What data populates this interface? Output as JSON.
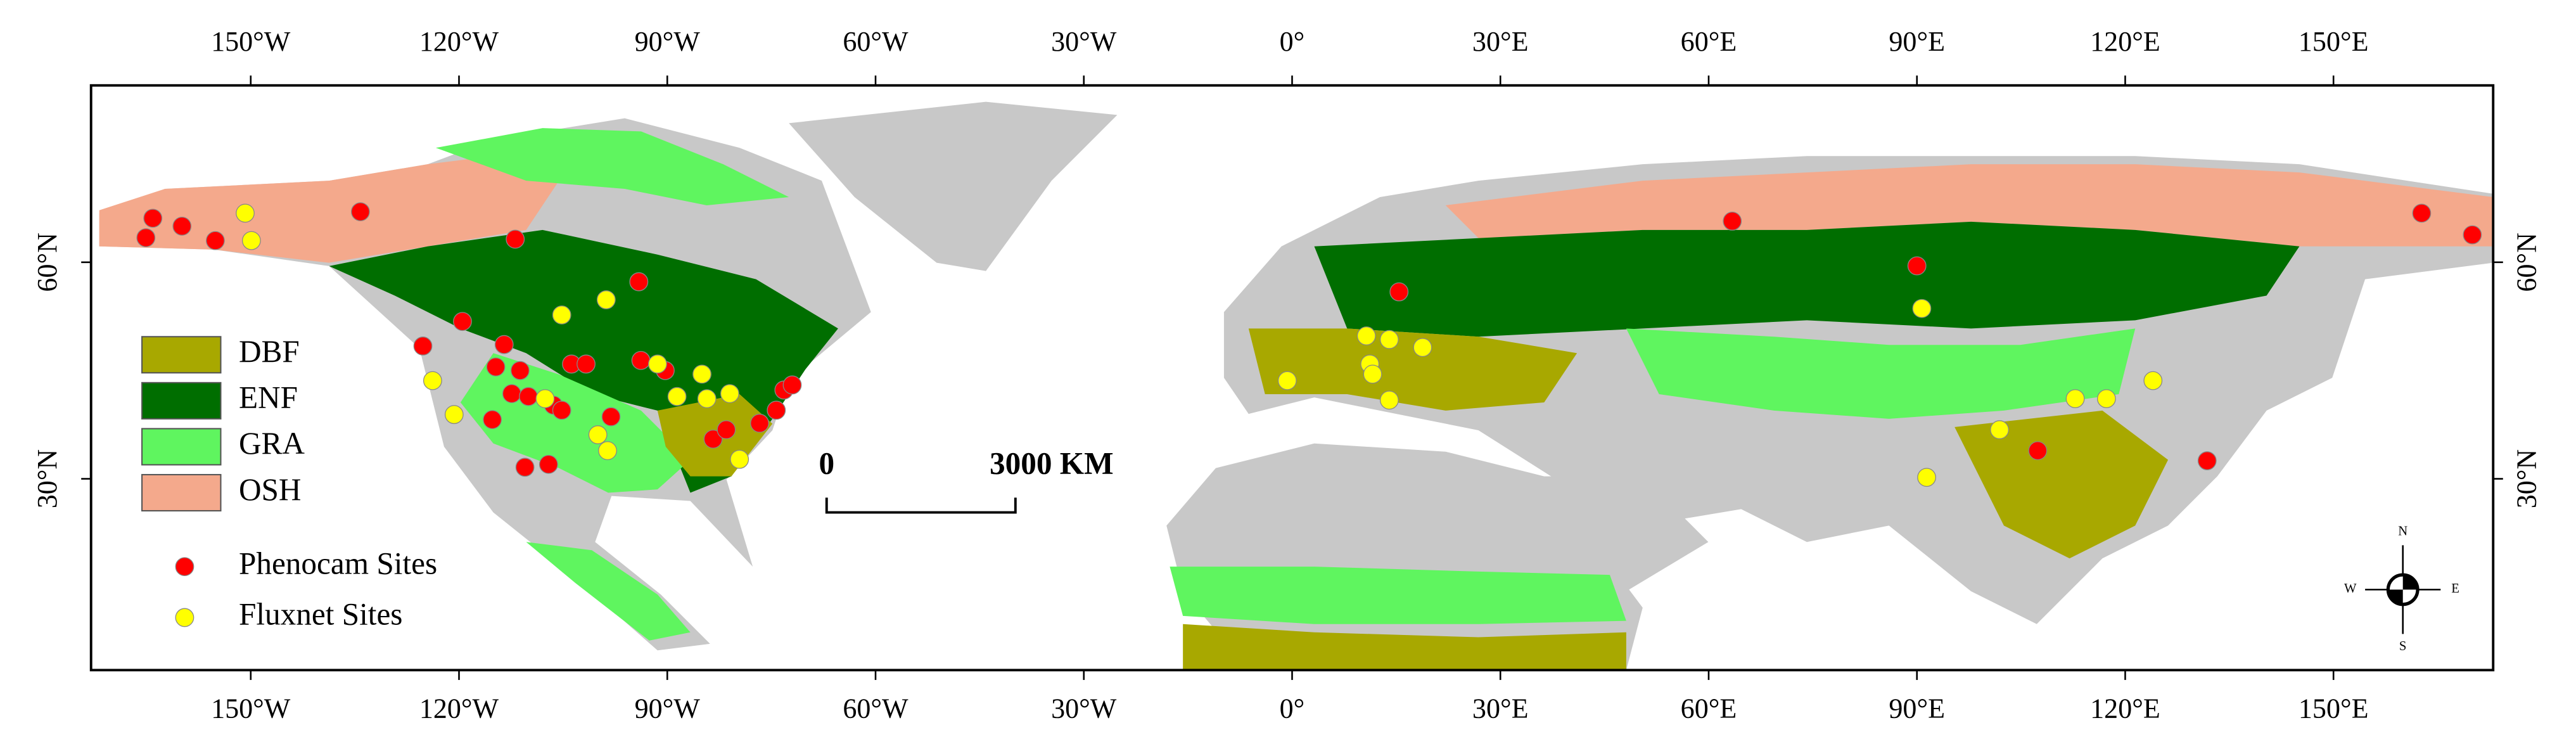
{
  "map": {
    "xlim": [
      -173,
      173
    ],
    "ylim": [
      3.5,
      84.5
    ],
    "lon_ticks": [
      {
        "value": -150,
        "label": "150°W"
      },
      {
        "value": -120,
        "label": "120°W"
      },
      {
        "value": -90,
        "label": "90°W"
      },
      {
        "value": -60,
        "label": "60°W"
      },
      {
        "value": -30,
        "label": "30°W"
      },
      {
        "value": 0,
        "label": "0°"
      },
      {
        "value": 30,
        "label": "30°E"
      },
      {
        "value": 60,
        "label": "60°E"
      },
      {
        "value": 90,
        "label": "90°E"
      },
      {
        "value": 120,
        "label": "120°E"
      },
      {
        "value": 150,
        "label": "150°E"
      }
    ],
    "lat_ticks": [
      {
        "value": 30,
        "label": "30°N"
      },
      {
        "value": 60,
        "label": "60°N"
      }
    ],
    "land_cover": [
      {
        "name": "DBF",
        "color": "#a8a800"
      },
      {
        "name": "ENF",
        "color": "#006e00"
      },
      {
        "name": "GRA",
        "color": "#5ff55f"
      },
      {
        "name": "OSH",
        "color": "#f4a98c"
      }
    ],
    "sites": [
      {
        "name": "Phenocam Sites",
        "color": "#ff0000",
        "points": [
          [
            -164.1,
            66.1
          ],
          [
            -165.1,
            63.4
          ],
          [
            -159.9,
            65.0
          ],
          [
            -155.1,
            63.0
          ],
          [
            -134.2,
            67.0
          ],
          [
            -111.9,
            63.2
          ],
          [
            -94.1,
            57.3
          ],
          [
            -119.5,
            51.8
          ],
          [
            -125.2,
            48.4
          ],
          [
            -113.5,
            48.6
          ],
          [
            -114.7,
            45.5
          ],
          [
            -111.2,
            45.0
          ],
          [
            -112.4,
            41.8
          ],
          [
            -110.0,
            41.4
          ],
          [
            -103.8,
            45.9
          ],
          [
            -101.7,
            45.9
          ],
          [
            -93.8,
            46.4
          ],
          [
            -90.3,
            45.0
          ],
          [
            -106.4,
            40.2
          ],
          [
            -105.2,
            39.5
          ],
          [
            -115.2,
            38.2
          ],
          [
            -110.5,
            31.6
          ],
          [
            -107.1,
            32.0
          ],
          [
            -98.1,
            38.6
          ],
          [
            -83.4,
            35.5
          ],
          [
            -81.5,
            36.8
          ],
          [
            -76.7,
            37.7
          ],
          [
            -74.3,
            39.5
          ],
          [
            -73.2,
            42.3
          ],
          [
            -72.0,
            43.0
          ],
          [
            63.4,
            65.7
          ],
          [
            15.4,
            55.9
          ],
          [
            90.0,
            59.5
          ],
          [
            107.4,
            33.9
          ],
          [
            131.8,
            32.5
          ],
          [
            162.7,
            66.8
          ],
          [
            170.0,
            63.8
          ]
        ]
      },
      {
        "name": "Fluxnet Sites",
        "color": "#ffff00",
        "points": [
          [
            -150.8,
            66.8
          ],
          [
            -149.9,
            63.0
          ],
          [
            -105.2,
            52.7
          ],
          [
            -98.8,
            54.8
          ],
          [
            -123.8,
            43.6
          ],
          [
            -120.7,
            38.9
          ],
          [
            -107.6,
            41.1
          ],
          [
            -100.0,
            36.1
          ],
          [
            -98.6,
            33.9
          ],
          [
            -91.4,
            45.9
          ],
          [
            -88.6,
            41.4
          ],
          [
            -85.0,
            44.5
          ],
          [
            -84.3,
            41.1
          ],
          [
            -81.0,
            41.8
          ],
          [
            -79.6,
            32.7
          ],
          [
            -0.7,
            43.6
          ],
          [
            10.7,
            49.8
          ],
          [
            14.0,
            49.3
          ],
          [
            11.2,
            45.9
          ],
          [
            11.6,
            44.5
          ],
          [
            14.0,
            40.9
          ],
          [
            18.8,
            48.2
          ],
          [
            90.7,
            53.6
          ],
          [
            91.4,
            30.2
          ],
          [
            101.9,
            36.8
          ],
          [
            112.8,
            41.1
          ],
          [
            117.3,
            41.1
          ],
          [
            124.0,
            43.6
          ]
        ]
      }
    ],
    "scale_bar": {
      "start": "0",
      "end": "3000 KM"
    },
    "compass": {
      "north": "N",
      "south": "S",
      "west": "W",
      "east": "E"
    }
  }
}
